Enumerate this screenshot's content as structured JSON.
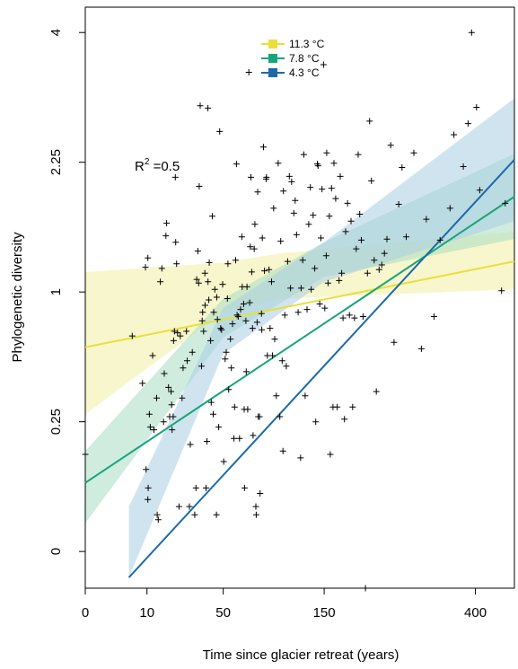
{
  "chart_data": {
    "type": "scatter",
    "title": "",
    "xlabel": "Time since glacier retreat (years)",
    "ylabel": "Phylogenetic diversity",
    "x_scale": "sqrt",
    "y_scale": "sqrt",
    "xlim": [
      0,
      484
    ],
    "ylim": [
      -0.02,
      4.4
    ],
    "x_ticks": [
      0,
      10,
      50,
      150,
      400
    ],
    "x_tick_labels": [
      "0",
      "10",
      "50",
      "150",
      "400"
    ],
    "y_ticks": [
      0,
      0.25,
      1,
      2.25,
      4
    ],
    "y_tick_labels": [
      "0",
      "0.25",
      "1",
      "2.25",
      "4"
    ],
    "grid": false,
    "legend_position": "top-center",
    "annotation": {
      "text": "R",
      "sup": "2",
      "rest": " =0.5"
    },
    "series": [
      {
        "name": "11.3 °C",
        "color": "#e8e03a",
        "band_color": "#f3efa3",
        "line": [
          [
            0,
            0.62
          ],
          [
            484,
            1.25
          ]
        ],
        "band": [
          [
            0,
            0.28,
            1.16
          ],
          [
            50,
            0.85,
            1.24
          ],
          [
            100,
            0.95,
            1.32
          ],
          [
            484,
            1.02,
            1.52
          ]
        ]
      },
      {
        "name": "7.8 °C",
        "color": "#17a57a",
        "band_color": "#a7dcc3",
        "line": [
          [
            0,
            0.07
          ],
          [
            484,
            1.87
          ]
        ],
        "band": [
          [
            0,
            0.012,
            0.15
          ],
          [
            50,
            0.68,
            0.95
          ],
          [
            150,
            1.12,
            1.42
          ],
          [
            484,
            1.45,
            2.35
          ]
        ]
      },
      {
        "name": "4.3 °C",
        "color": "#1c6aaa",
        "band_color": "#a9cde4",
        "line": [
          [
            5,
            -0.01
          ],
          [
            484,
            2.28
          ]
        ],
        "band": [
          [
            5,
            -0.01,
            0.03
          ],
          [
            50,
            0.58,
            0.88
          ],
          [
            150,
            1.08,
            1.42
          ],
          [
            484,
            1.62,
            3.05
          ]
        ]
      }
    ],
    "points": [
      [
        0,
        0.14
      ],
      [
        5.8,
        0.69
      ],
      [
        8.6,
        0.42
      ],
      [
        9.5,
        1.2
      ],
      [
        10.3,
        1.28
      ],
      [
        9.7,
        0.1
      ],
      [
        10.4,
        0.06
      ],
      [
        10.3,
        0.04
      ],
      [
        10.8,
        0.28
      ],
      [
        11.9,
        0.57
      ],
      [
        11.1,
        0.23
      ],
      [
        12.4,
        0.22
      ],
      [
        13.6,
        0.02
      ],
      [
        14,
        0.015
      ],
      [
        13.4,
        0.35
      ],
      [
        16.1,
        0.25
      ],
      [
        14.8,
        1.08
      ],
      [
        15.4,
        1.19
      ],
      [
        16.4,
        0.47
      ],
      [
        17.1,
        1.48
      ],
      [
        17.4,
        1.6
      ],
      [
        18.2,
        0.4
      ],
      [
        18.7,
        0.27
      ],
      [
        19.6,
        0.32
      ],
      [
        19.8,
        0.22
      ],
      [
        20.3,
        0.27
      ],
      [
        19.3,
        0.38
      ],
      [
        20.9,
        0.72
      ],
      [
        20.5,
        0.66
      ],
      [
        21.5,
        1.42
      ],
      [
        21.3,
        2.08
      ],
      [
        21.9,
        1.23
      ],
      [
        22.4,
        0.71
      ],
      [
        23.1,
        0.03
      ],
      [
        23.7,
        0.69
      ],
      [
        24.6,
        0.35
      ],
      [
        25.1,
        0.5
      ],
      [
        26.9,
        0.72
      ],
      [
        27.3,
        0.54
      ],
      [
        28.5,
        0.03
      ],
      [
        29,
        0.17
      ],
      [
        30.1,
        0.59
      ],
      [
        31.5,
        0.02
      ],
      [
        32.2,
        0.06
      ],
      [
        32.6,
        1.1
      ],
      [
        33.3,
        1.34
      ],
      [
        33.8,
        1.07
      ],
      [
        34.1,
        1.98
      ],
      [
        34.7,
        2.95
      ],
      [
        35.5,
        0.51
      ],
      [
        35.9,
        0.79
      ],
      [
        36.2,
        0.85
      ],
      [
        36.8,
        0.72
      ],
      [
        37.6,
        1.15
      ],
      [
        37.7,
        0.9
      ],
      [
        38.3,
        0.06
      ],
      [
        38.9,
        0.18
      ],
      [
        39.5,
        2.92
      ],
      [
        39.6,
        1.08
      ],
      [
        40.1,
        0.94
      ],
      [
        40.4,
        1.24
      ],
      [
        41.3,
        0.66
      ],
      [
        41.7,
        0.33
      ],
      [
        42.4,
        1.67
      ],
      [
        43,
        0.28
      ],
      [
        43.3,
        0.85
      ],
      [
        44.1,
        1.02
      ],
      [
        45.2,
        0.02
      ],
      [
        45.4,
        0.96
      ],
      [
        45.9,
        0.8
      ],
      [
        46.8,
        0.23
      ],
      [
        47.5,
        2.62
      ],
      [
        48.2,
        0.74
      ],
      [
        48.8,
        0.73
      ],
      [
        49.6,
        1.06
      ],
      [
        50.4,
        0.12
      ],
      [
        51.4,
        0.55
      ],
      [
        52.2,
        0.59
      ],
      [
        53.1,
        0.95
      ],
      [
        53.5,
        1.23
      ],
      [
        54,
        0.39
      ],
      [
        55.4,
        0.67
      ],
      [
        56.1,
        0.5
      ],
      [
        57,
        0.77
      ],
      [
        58.1,
        0.19
      ],
      [
        58.6,
        0.31
      ],
      [
        59.4,
        1.26
      ],
      [
        60.1,
        2.23
      ],
      [
        60.6,
        0.83
      ],
      [
        61.5,
        0.82
      ],
      [
        62.5,
        0.19
      ],
      [
        63.4,
        0.87
      ],
      [
        64.4,
        1.47
      ],
      [
        64.7,
        1.04
      ],
      [
        65.9,
        0.91
      ],
      [
        66.4,
        0.3
      ],
      [
        66.7,
        0.06
      ],
      [
        67.8,
        0.79
      ],
      [
        68.1,
        0.48
      ],
      [
        68.7,
        1.04
      ],
      [
        69.3,
        0.3
      ],
      [
        70.3,
        3.41
      ],
      [
        71,
        0.92
      ],
      [
        71.6,
        1.38
      ],
      [
        72.1,
        2.08
      ],
      [
        72.8,
        1.16
      ],
      [
        73.5,
        0.74
      ],
      [
        74,
        0.2
      ],
      [
        75,
        1.36
      ],
      [
        75.6,
        1.59
      ],
      [
        76.5,
        0.03
      ],
      [
        76.8,
        0.02
      ],
      [
        77.6,
        0.78
      ],
      [
        78.1,
        1.92
      ],
      [
        78.7,
        0.27
      ],
      [
        79.8,
        0.27
      ],
      [
        80.3,
        0.05
      ],
      [
        81.6,
        0.84
      ],
      [
        81.9,
        0.73
      ],
      [
        82.4,
        1.46
      ],
      [
        83.5,
        2.43
      ],
      [
        84.4,
        1.17
      ],
      [
        85.9,
        2.06
      ],
      [
        86.3,
        2.08
      ],
      [
        87.1,
        0.57
      ],
      [
        88.8,
        1.18
      ],
      [
        89.7,
        0.74
      ],
      [
        91.2,
        1.08
      ],
      [
        92.1,
        0.57
      ],
      [
        93.2,
        1.75
      ],
      [
        94.3,
        0.67
      ],
      [
        95.9,
        0.36
      ],
      [
        97.8,
        2.24
      ],
      [
        99.5,
        0.27
      ],
      [
        100.4,
        1.43
      ],
      [
        101.9,
        0.54
      ],
      [
        102.7,
        0.15
      ],
      [
        103.2,
        1.93
      ],
      [
        104.6,
        0.83
      ],
      [
        106.2,
        0.51
      ],
      [
        107.6,
        1.25
      ],
      [
        109.4,
        2.09
      ],
      [
        110.7,
        1.03
      ],
      [
        111.9,
        2.03
      ],
      [
        114.3,
        1.7
      ],
      [
        115.8,
        1.83
      ],
      [
        117.3,
        1.49
      ],
      [
        119.1,
        0.85
      ],
      [
        121.8,
        0.13
      ],
      [
        122.4,
        1.03
      ],
      [
        124.3,
        1.26
      ],
      [
        125.5,
        2.34
      ],
      [
        127,
        0.36
      ],
      [
        129.2,
        0.87
      ],
      [
        131.2,
        1.59
      ],
      [
        133.1,
        1.97
      ],
      [
        134.2,
        1.02
      ],
      [
        136.5,
        1.68
      ],
      [
        138.4,
        1.19
      ],
      [
        139.6,
        0.25
      ],
      [
        141.6,
        2.23
      ],
      [
        142.4,
        2.21
      ],
      [
        144.4,
        0.91
      ],
      [
        145.8,
        1.46
      ],
      [
        147.3,
        1.95
      ],
      [
        149.2,
        3.52
      ],
      [
        150.8,
        0.88
      ],
      [
        152.6,
        1.3
      ],
      [
        153.2,
        2.36
      ],
      [
        154.9,
        1.07
      ],
      [
        156.6,
        1.67
      ],
      [
        157.8,
        0.14
      ],
      [
        159.4,
        1.96
      ],
      [
        161.2,
        0.31
      ],
      [
        162.5,
        2.24
      ],
      [
        164.8,
        1.85
      ],
      [
        166.8,
        0.31
      ],
      [
        169.3,
        1.09
      ],
      [
        170.9,
        2.09
      ],
      [
        172.8,
        1.15
      ],
      [
        174.6,
        0.81
      ],
      [
        176.5,
        0.26
      ],
      [
        178.2,
        1.52
      ],
      [
        180.7,
        1.8
      ],
      [
        183.4,
        0.83
      ],
      [
        185.6,
        1.62
      ],
      [
        187.9,
        0.31
      ],
      [
        190.5,
        0.81
      ],
      [
        192.9,
        1.36
      ],
      [
        195.8,
        2.34
      ],
      [
        197.9,
        1.69
      ],
      [
        200.3,
        1.44
      ],
      [
        202.8,
        0.82
      ],
      [
        206.3,
        -0.02
      ],
      [
        209.2,
        1.15
      ],
      [
        212.5,
        2.75
      ],
      [
        215.2,
        2.04
      ],
      [
        219.3,
        1.26
      ],
      [
        222.6,
        0.38
      ],
      [
        226.9,
        1.18
      ],
      [
        231.1,
        1.22
      ],
      [
        235.2,
        1.32
      ],
      [
        239.2,
        1.45
      ],
      [
        245.2,
        2.45
      ],
      [
        250.5,
        0.65
      ],
      [
        258.1,
        1.79
      ],
      [
        263.7,
        2.19
      ],
      [
        270.8,
        1.47
      ],
      [
        283.7,
        2.36
      ],
      [
        297,
        0.61
      ],
      [
        305.8,
        1.64
      ],
      [
        319.5,
        0.82
      ],
      [
        330.8,
        1.44
      ],
      [
        349.7,
        1.75
      ],
      [
        357.2,
        2.58
      ],
      [
        375.6,
        2.2
      ],
      [
        385.1,
        2.72
      ],
      [
        392.2,
        4.0
      ],
      [
        402.4,
        2.93
      ],
      [
        408.9,
        1.94
      ],
      [
        455.4,
        1.01
      ],
      [
        463.5,
        1.8
      ]
    ]
  }
}
